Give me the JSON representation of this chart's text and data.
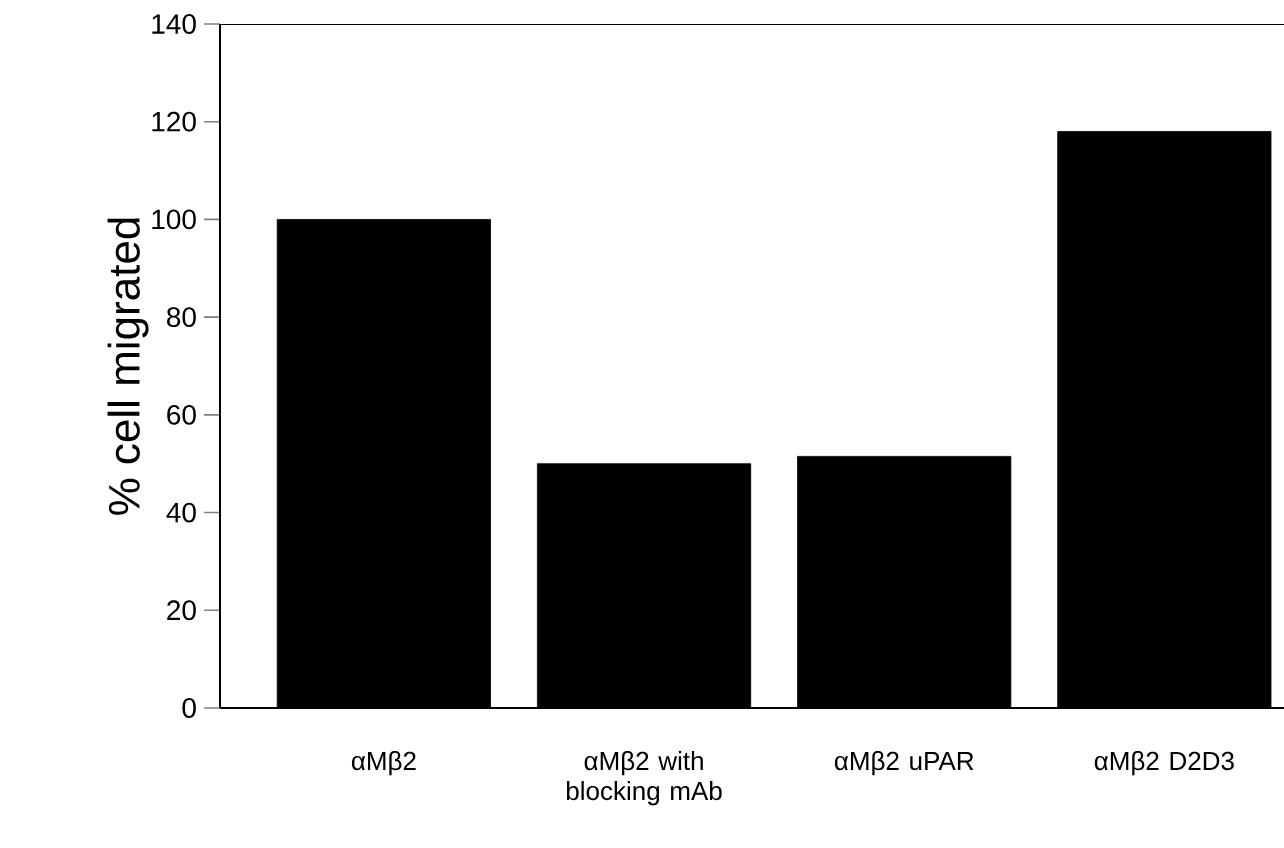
{
  "chart_data": {
    "type": "bar",
    "ylabel": "% cell migrated",
    "categories": [
      "αMβ2",
      "αMβ2 with blocking mAb",
      "αMβ2 uPAR",
      "αMβ2 D2D3"
    ],
    "values": [
      100,
      50,
      51.5,
      118
    ],
    "color": "#000000",
    "ylim": [
      0,
      140
    ],
    "yticks": [
      0,
      20,
      40,
      60,
      80,
      100,
      120,
      140
    ]
  }
}
